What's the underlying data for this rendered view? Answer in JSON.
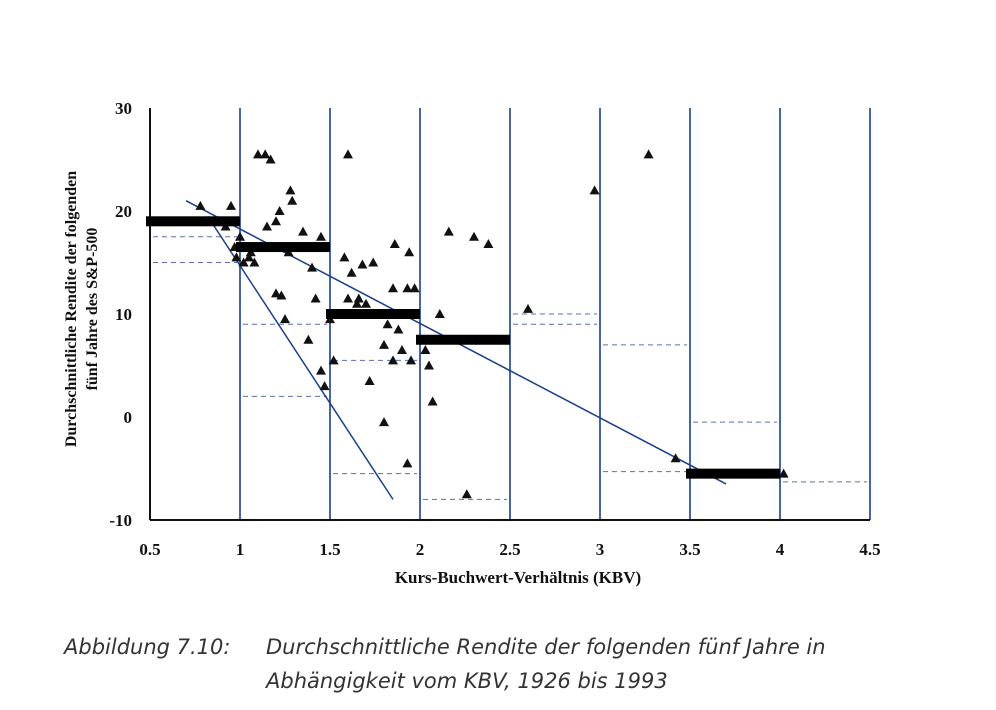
{
  "chart_data": {
    "type": "scatter",
    "title": "",
    "xlabel": "Kurs-Buchwert-Verhältnis (KBV)",
    "ylabel_lines": [
      "Durchschnittliche Rendite der folgenden",
      "fünf Jahre des S&P-500"
    ],
    "xlim": [
      0.5,
      4.5
    ],
    "ylim": [
      -10,
      30
    ],
    "x_ticks": [
      "0.5",
      "1",
      "1.5",
      "2",
      "2.5",
      "3",
      "3.5",
      "4",
      "4.5"
    ],
    "y_ticks": [
      "30",
      "20",
      "10",
      "0",
      "-10"
    ],
    "vertical_lines": [
      1,
      1.5,
      2,
      2.5,
      3,
      3.5,
      4,
      4.5
    ],
    "points": [
      [
        0.78,
        20.5
      ],
      [
        0.95,
        20.5
      ],
      [
        0.92,
        18.5
      ],
      [
        0.97,
        16.5
      ],
      [
        1.0,
        17.5
      ],
      [
        0.98,
        15.5
      ],
      [
        1.02,
        15.0
      ],
      [
        1.05,
        15.5
      ],
      [
        1.08,
        15.0
      ],
      [
        1.06,
        16.0
      ],
      [
        1.1,
        25.5
      ],
      [
        1.14,
        25.5
      ],
      [
        1.17,
        25.0
      ],
      [
        1.2,
        19.0
      ],
      [
        1.22,
        20.0
      ],
      [
        1.28,
        22.0
      ],
      [
        1.29,
        21.0
      ],
      [
        1.15,
        18.5
      ],
      [
        1.35,
        18.0
      ],
      [
        1.45,
        17.5
      ],
      [
        1.27,
        16.0
      ],
      [
        1.4,
        14.5
      ],
      [
        1.2,
        12.0
      ],
      [
        1.23,
        11.8
      ],
      [
        1.42,
        11.5
      ],
      [
        1.25,
        9.5
      ],
      [
        1.38,
        7.5
      ],
      [
        1.5,
        9.5
      ],
      [
        1.6,
        25.5
      ],
      [
        1.58,
        15.5
      ],
      [
        1.68,
        14.8
      ],
      [
        1.74,
        15.0
      ],
      [
        1.62,
        14.0
      ],
      [
        1.6,
        11.5
      ],
      [
        1.66,
        11.5
      ],
      [
        1.7,
        11.0
      ],
      [
        1.65,
        11.0
      ],
      [
        1.86,
        16.8
      ],
      [
        1.94,
        16.0
      ],
      [
        1.85,
        12.5
      ],
      [
        1.93,
        12.5
      ],
      [
        1.97,
        12.5
      ],
      [
        1.88,
        10.0
      ],
      [
        1.82,
        9.0
      ],
      [
        1.88,
        8.5
      ],
      [
        1.8,
        7.0
      ],
      [
        1.9,
        6.5
      ],
      [
        1.95,
        5.5
      ],
      [
        2.03,
        6.5
      ],
      [
        2.05,
        5.0
      ],
      [
        1.85,
        5.5
      ],
      [
        1.52,
        5.5
      ],
      [
        1.45,
        4.5
      ],
      [
        1.47,
        3.0
      ],
      [
        1.72,
        3.5
      ],
      [
        1.8,
        -0.5
      ],
      [
        2.07,
        1.5
      ],
      [
        1.93,
        -4.5
      ],
      [
        2.11,
        10.0
      ],
      [
        2.16,
        18.0
      ],
      [
        2.3,
        17.5
      ],
      [
        2.38,
        16.8
      ],
      [
        2.26,
        -7.5
      ],
      [
        2.6,
        10.5
      ],
      [
        2.97,
        22.0
      ],
      [
        3.27,
        25.5
      ],
      [
        3.42,
        -4.0
      ],
      [
        3.62,
        -5.5
      ],
      [
        4.02,
        -5.5
      ]
    ],
    "range_means": [
      {
        "x": [
          0.5,
          1.0
        ],
        "y": 19.0
      },
      {
        "x": [
          1.0,
          1.5
        ],
        "y": 16.5
      },
      {
        "x": [
          1.5,
          2.0
        ],
        "y": 10.0
      },
      {
        "x": [
          2.0,
          2.5
        ],
        "y": 7.5
      },
      {
        "x": [
          3.5,
          4.0
        ],
        "y": -5.5
      }
    ],
    "trend_lines": [
      {
        "x1": 0.7,
        "y1": 21.0,
        "x2": 3.7,
        "y2": -6.5
      },
      {
        "x1": 0.82,
        "y1": 19.5,
        "x2": 1.85,
        "y2": -8.0
      }
    ],
    "dashed_levels": [
      {
        "x": [
          0.5,
          1.0
        ],
        "y": 17.5
      },
      {
        "x": [
          0.5,
          1.0
        ],
        "y": 15.0
      },
      {
        "x": [
          1.0,
          1.5
        ],
        "y": 9.0
      },
      {
        "x": [
          1.0,
          1.5
        ],
        "y": 2.0
      },
      {
        "x": [
          1.5,
          2.0
        ],
        "y": 5.5
      },
      {
        "x": [
          1.5,
          2.0
        ],
        "y": -5.5
      },
      {
        "x": [
          2.0,
          2.5
        ],
        "y": -8.0
      },
      {
        "x": [
          2.5,
          3.0
        ],
        "y": 10.0
      },
      {
        "x": [
          2.5,
          3.0
        ],
        "y": 9.0
      },
      {
        "x": [
          3.0,
          3.5
        ],
        "y": 7.0
      },
      {
        "x": [
          3.5,
          4.0
        ],
        "y": -0.5
      },
      {
        "x": [
          3.0,
          3.5
        ],
        "y": -5.3
      },
      {
        "x": [
          4.0,
          4.5
        ],
        "y": -6.3
      }
    ],
    "colors": {
      "grid": "#1a3f8a",
      "marker": "#111111",
      "bar": "#000000",
      "dashed": "#5a6fb0"
    }
  },
  "caption": {
    "label": "Abbildung 7.10:",
    "line1": "Durchschnittliche Rendite der folgenden fünf Jahre in",
    "line2": "Abhängigkeit vom KBV, 1926 bis 1993"
  }
}
